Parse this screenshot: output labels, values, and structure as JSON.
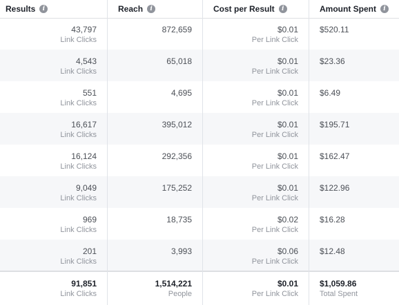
{
  "columns": [
    {
      "label": "Results"
    },
    {
      "label": "Reach"
    },
    {
      "label": "Cost per Result"
    },
    {
      "label": "Amount Spent"
    }
  ],
  "rows": [
    {
      "results": "43,797",
      "results_sub": "Link Clicks",
      "reach": "872,659",
      "cost": "$0.01",
      "cost_sub": "Per Link Click",
      "spent": "$520.11"
    },
    {
      "results": "4,543",
      "results_sub": "Link Clicks",
      "reach": "65,018",
      "cost": "$0.01",
      "cost_sub": "Per Link Click",
      "spent": "$23.36"
    },
    {
      "results": "551",
      "results_sub": "Link Clicks",
      "reach": "4,695",
      "cost": "$0.01",
      "cost_sub": "Per Link Click",
      "spent": "$6.49"
    },
    {
      "results": "16,617",
      "results_sub": "Link Clicks",
      "reach": "395,012",
      "cost": "$0.01",
      "cost_sub": "Per Link Click",
      "spent": "$195.71"
    },
    {
      "results": "16,124",
      "results_sub": "Link Clicks",
      "reach": "292,356",
      "cost": "$0.01",
      "cost_sub": "Per Link Click",
      "spent": "$162.47"
    },
    {
      "results": "9,049",
      "results_sub": "Link Clicks",
      "reach": "175,252",
      "cost": "$0.01",
      "cost_sub": "Per Link Click",
      "spent": "$122.96"
    },
    {
      "results": "969",
      "results_sub": "Link Clicks",
      "reach": "18,735",
      "cost": "$0.02",
      "cost_sub": "Per Link Click",
      "spent": "$16.28"
    },
    {
      "results": "201",
      "results_sub": "Link Clicks",
      "reach": "3,993",
      "cost": "$0.06",
      "cost_sub": "Per Link Click",
      "spent": "$12.48"
    }
  ],
  "totals": {
    "results": "91,851",
    "results_sub": "Link Clicks",
    "reach": "1,514,221",
    "reach_sub": "People",
    "cost": "$0.01",
    "cost_sub": "Per Link Click",
    "spent": "$1,059.86",
    "spent_sub": "Total Spent"
  },
  "icons": {
    "info": "info-icon"
  },
  "colors": {
    "header_text": "#1d2129",
    "body_text": "#4b4f56",
    "muted_text": "#90949c",
    "alt_row": "#f6f7f9",
    "divider": "#dddfe2"
  }
}
